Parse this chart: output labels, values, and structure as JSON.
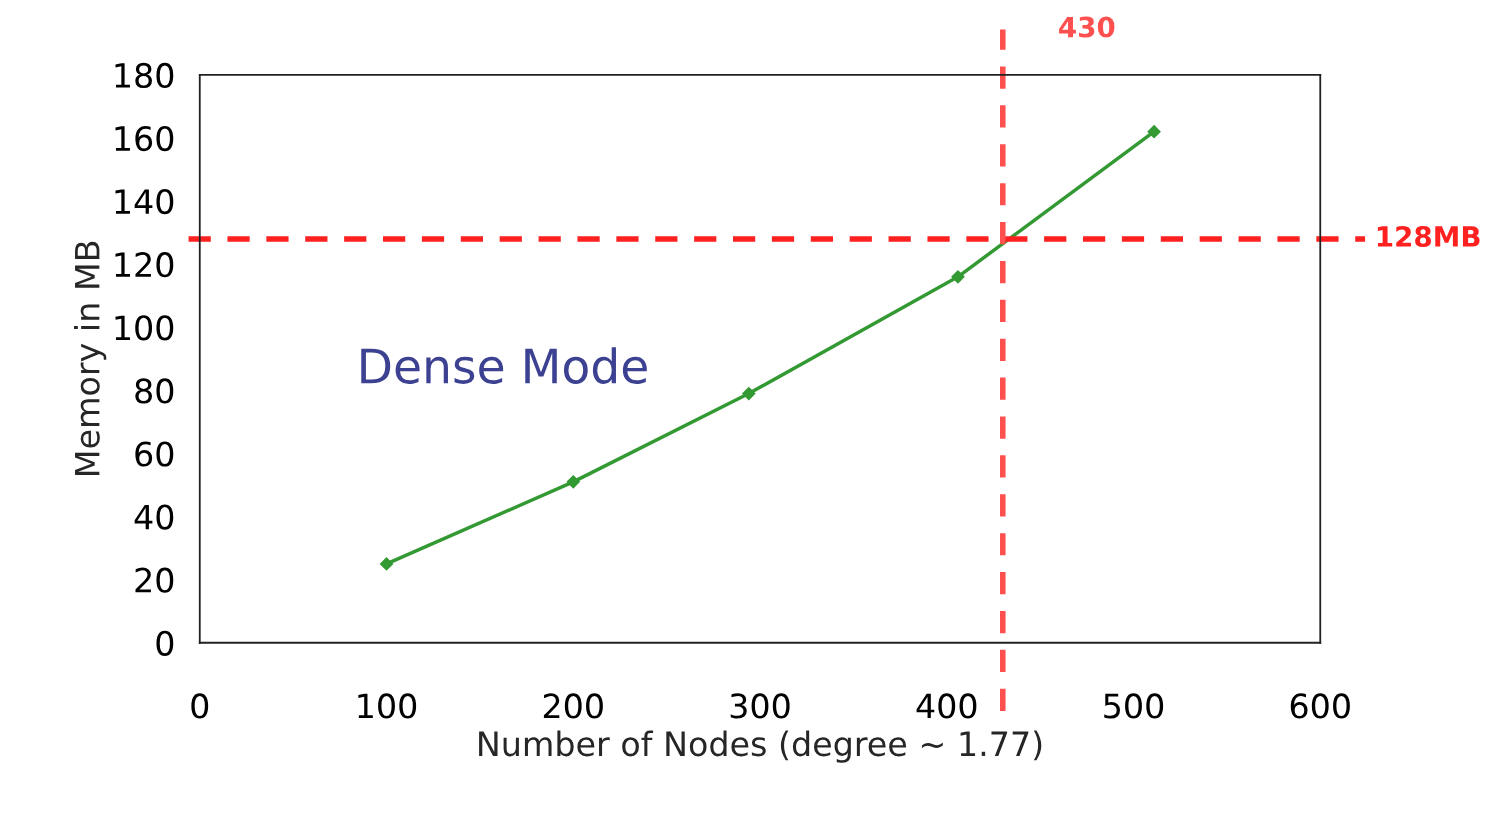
{
  "chart_data": {
    "type": "line",
    "xlabel": "Number of Nodes (degree ~ 1.77)",
    "ylabel": "Memory in MB",
    "x": [
      100,
      200,
      294,
      406,
      511
    ],
    "series": [
      {
        "color": "#339933",
        "values": [
          25,
          51,
          79,
          116,
          162
        ]
      }
    ],
    "xlim": [
      0,
      600
    ],
    "xticks": [
      0,
      100,
      200,
      300,
      400,
      500,
      600
    ],
    "ylim": [
      0,
      180
    ],
    "yticks": [
      0,
      20,
      40,
      60,
      80,
      100,
      120,
      140,
      160,
      180
    ],
    "ref_lines": [
      {
        "axis": "x",
        "value": 430,
        "label": "430",
        "color": "#ff5050",
        "line_style": "dashed"
      },
      {
        "axis": "y",
        "value": 128,
        "label": "128MB",
        "color": "#ff2020",
        "line_style": "dashed"
      }
    ],
    "annotations": [
      "Dense Mode"
    ],
    "marker": "diamond",
    "line_style": "solid",
    "grid": false,
    "legend": false
  }
}
